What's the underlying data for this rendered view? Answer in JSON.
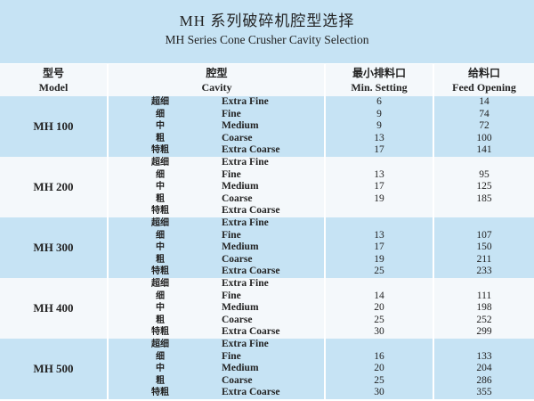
{
  "title": {
    "cn": "MH 系列破碎机腔型选择",
    "en": "MH  Series Cone Crusher Cavity Selection"
  },
  "headers": {
    "model": {
      "cn": "型号",
      "en": "Model"
    },
    "cavity": {
      "cn": "腔型",
      "en": "Cavity"
    },
    "min_setting": {
      "cn": "最小排料口",
      "en": "Min. Setting"
    },
    "feed_opening": {
      "cn": "给料口",
      "en": "Feed Opening"
    }
  },
  "colors": {
    "band_blue": "#c6e3f4",
    "band_white": "#f4f8fb"
  },
  "groups": [
    {
      "model": "MH  100",
      "rows": [
        {
          "cn": "超细",
          "en": "Extra Fine",
          "min": "6",
          "feed": "14"
        },
        {
          "cn": "细",
          "en": "Fine",
          "min": "9",
          "feed": "74"
        },
        {
          "cn": "中",
          "en": "Medium",
          "min": "9",
          "feed": "72"
        },
        {
          "cn": "粗",
          "en": "Coarse",
          "min": "13",
          "feed": "100"
        },
        {
          "cn": "特粗",
          "en": "Extra Coarse",
          "min": "17",
          "feed": "141"
        }
      ]
    },
    {
      "model": "MH  200",
      "rows": [
        {
          "cn": "超细",
          "en": "Extra Fine",
          "min": "",
          "feed": ""
        },
        {
          "cn": "细",
          "en": "Fine",
          "min": "13",
          "feed": "95"
        },
        {
          "cn": "中",
          "en": "Medium",
          "min": "17",
          "feed": "125"
        },
        {
          "cn": "粗",
          "en": "Coarse",
          "min": "19",
          "feed": "185"
        },
        {
          "cn": "特粗",
          "en": "Extra Coarse",
          "min": "",
          "feed": ""
        }
      ]
    },
    {
      "model": "MH  300",
      "rows": [
        {
          "cn": "超细",
          "en": "Extra Fine",
          "min": "",
          "feed": ""
        },
        {
          "cn": "细",
          "en": "Fine",
          "min": "13",
          "feed": "107"
        },
        {
          "cn": "中",
          "en": "Medium",
          "min": "17",
          "feed": "150"
        },
        {
          "cn": "粗",
          "en": "Coarse",
          "min": "19",
          "feed": "211"
        },
        {
          "cn": "特粗",
          "en": "Extra Coarse",
          "min": "25",
          "feed": "233"
        }
      ]
    },
    {
      "model": "MH  400",
      "rows": [
        {
          "cn": "超细",
          "en": "Extra Fine",
          "min": "",
          "feed": ""
        },
        {
          "cn": "细",
          "en": "Fine",
          "min": "14",
          "feed": "111"
        },
        {
          "cn": "中",
          "en": "Medium",
          "min": "20",
          "feed": "198"
        },
        {
          "cn": "粗",
          "en": "Coarse",
          "min": "25",
          "feed": "252"
        },
        {
          "cn": "特粗",
          "en": "Extra Coarse",
          "min": "30",
          "feed": "299"
        }
      ]
    },
    {
      "model": "MH  500",
      "rows": [
        {
          "cn": "超细",
          "en": "Extra Fine",
          "min": "",
          "feed": ""
        },
        {
          "cn": "细",
          "en": "Fine",
          "min": "16",
          "feed": "133"
        },
        {
          "cn": "中",
          "en": "Medium",
          "min": "20",
          "feed": "204"
        },
        {
          "cn": "粗",
          "en": "Coarse",
          "min": "25",
          "feed": "286"
        },
        {
          "cn": "特粗",
          "en": "Extra Coarse",
          "min": "30",
          "feed": "355"
        }
      ]
    }
  ]
}
